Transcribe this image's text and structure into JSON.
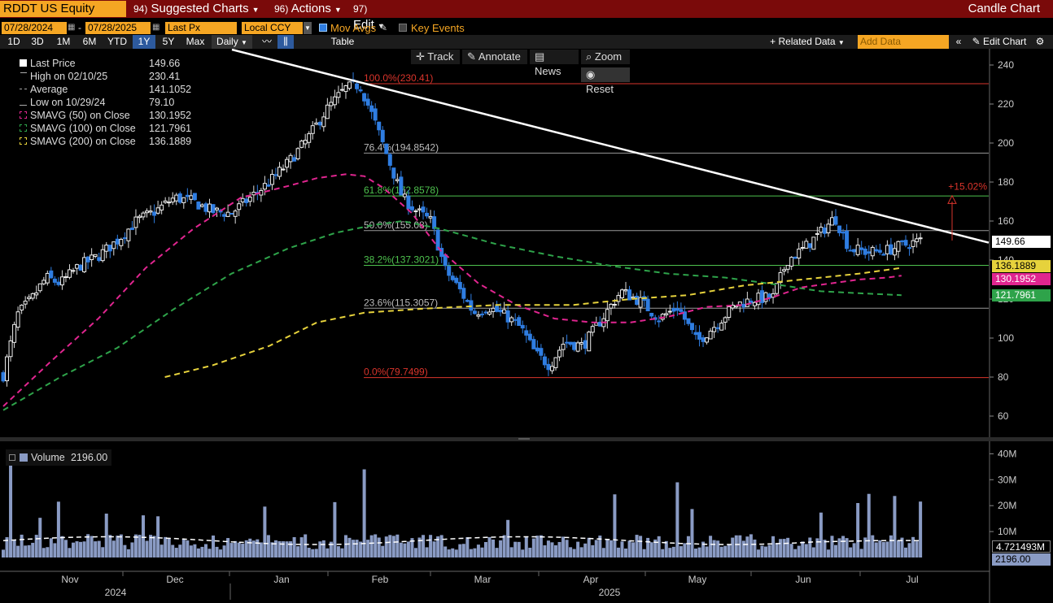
{
  "header": {
    "ticker": "RDDT US Equity",
    "menu_suggested": "Suggested Charts",
    "menu_suggested_num": "94)",
    "menu_actions": "Actions",
    "menu_actions_num": "96)",
    "menu_edit": "Edit",
    "menu_edit_num": "97)",
    "chart_title": "Candle Chart"
  },
  "controls": {
    "start_date": "07/28/2024",
    "end_date": "07/28/2025",
    "date_sep": "-",
    "price_field": "Last Px",
    "currency": "Local CCY",
    "mov_avgs": "Mov Avgs",
    "key_events": "Key Events",
    "periods": [
      "1D",
      "3D",
      "1M",
      "6M",
      "YTD",
      "1Y",
      "5Y",
      "Max"
    ],
    "active_period": "1Y",
    "frequency": "Daily",
    "table": "Table",
    "related_data": "+ Related Data",
    "add_data_placeholder": "Add Data",
    "edit_chart": "Edit Chart"
  },
  "tools": {
    "track": "Track",
    "annotate": "Annotate",
    "news": "News",
    "zoom": "Zoom",
    "reset": "Reset"
  },
  "legend": {
    "rows": [
      {
        "label": "Last Price",
        "value": "149.66"
      },
      {
        "label": "High on 02/10/25",
        "value": "230.41"
      },
      {
        "label": "Average",
        "value": "141.1052"
      },
      {
        "label": "Low on 10/29/24",
        "value": "79.10"
      },
      {
        "label": "SMAVG (50)   on Close",
        "value": "130.1952"
      },
      {
        "label": "SMAVG (100)  on Close",
        "value": "121.7961"
      },
      {
        "label": "SMAVG (200)  on Close",
        "value": "136.1889"
      }
    ],
    "volume_label": "Volume",
    "volume_value": "2196.00"
  },
  "tags": {
    "last": "149.66",
    "sma200": "136.1889",
    "sma50": "130.1952",
    "sma100": "121.7961",
    "vol_ma": "4.721493M",
    "vol": "2196.00"
  },
  "colors": {
    "menu_bar": "#7a0a0a",
    "accent": "#f5a623",
    "candle_up": "#ffffff",
    "candle_down": "#2f7de1",
    "sma50": "#e0258f",
    "sma100": "#2ea34a",
    "sma200": "#e6d23c",
    "fib_red": "#d9342b",
    "fib_green": "#4ec24e",
    "volume": "#8a9bc4"
  },
  "chart_data": {
    "type": "candlestick",
    "title": "RDDT US Equity",
    "ylim": [
      50,
      245
    ],
    "y_ticks": [
      60,
      80,
      100,
      120,
      140,
      160,
      180,
      200,
      220,
      240
    ],
    "x_month_labels": [
      "Nov",
      "Dec",
      "Jan",
      "Feb",
      "Mar",
      "Apr",
      "May",
      "Jun",
      "Jul"
    ],
    "x_year_labels": [
      "2024",
      "2025"
    ],
    "fibonacci": [
      {
        "label": "100.0%(230.41)",
        "value": 230.41,
        "color": "red"
      },
      {
        "label": "76.4%(194.8542)",
        "value": 194.8542,
        "color": "gray"
      },
      {
        "label": "61.8%(172.8578)",
        "value": 172.8578,
        "color": "green"
      },
      {
        "label": "50.0%(155.08)",
        "value": 155.08,
        "color": "gray"
      },
      {
        "label": "38.2%(137.3021)",
        "value": 137.3021,
        "color": "green"
      },
      {
        "label": "23.6%(115.3057)",
        "value": 115.3057,
        "color": "gray"
      },
      {
        "label": "0.0%(79.7499)",
        "value": 79.7499,
        "color": "red"
      }
    ],
    "annotation": {
      "label": "+15.02%"
    },
    "trendline": [
      [
        0,
        240
      ],
      [
        100,
        151
      ]
    ],
    "price_anchors": [
      [
        0,
        81
      ],
      [
        1.5,
        112
      ],
      [
        3,
        120
      ],
      [
        4.5,
        131
      ],
      [
        6,
        128
      ],
      [
        8,
        137
      ],
      [
        10,
        142
      ],
      [
        12,
        150
      ],
      [
        14,
        160
      ],
      [
        16,
        165
      ],
      [
        18,
        172
      ],
      [
        20,
        170
      ],
      [
        22,
        165
      ],
      [
        24,
        164
      ],
      [
        26,
        172
      ],
      [
        28,
        180
      ],
      [
        30,
        190
      ],
      [
        32,
        202
      ],
      [
        34,
        217
      ],
      [
        36,
        228
      ],
      [
        37.5,
        230
      ],
      [
        39,
        212
      ],
      [
        40.5,
        192
      ],
      [
        42,
        172
      ],
      [
        43.5,
        165
      ],
      [
        45,
        160
      ],
      [
        46.5,
        135
      ],
      [
        48,
        125
      ],
      [
        49.5,
        113
      ],
      [
        51,
        116
      ],
      [
        53,
        111
      ],
      [
        54.5,
        105
      ],
      [
        56,
        92
      ],
      [
        57.5,
        86
      ],
      [
        59,
        98
      ],
      [
        61,
        96
      ],
      [
        63,
        110
      ],
      [
        65,
        124
      ],
      [
        67,
        119
      ],
      [
        69,
        110
      ],
      [
        71,
        116
      ],
      [
        73,
        98
      ],
      [
        75,
        107
      ],
      [
        77,
        117
      ],
      [
        79,
        120
      ],
      [
        81,
        121
      ],
      [
        82.5,
        140
      ],
      [
        84,
        145
      ],
      [
        86,
        154
      ],
      [
        87.5,
        162
      ],
      [
        89,
        146
      ],
      [
        91,
        144
      ],
      [
        93,
        145
      ],
      [
        95,
        148
      ],
      [
        96.5,
        150
      ]
    ],
    "sma50": [
      [
        0,
        65
      ],
      [
        5,
        88
      ],
      [
        10,
        110
      ],
      [
        15,
        136
      ],
      [
        20,
        156
      ],
      [
        25,
        172
      ],
      [
        30,
        178
      ],
      [
        33,
        182
      ],
      [
        36,
        184
      ],
      [
        38,
        183
      ],
      [
        40,
        177
      ],
      [
        43,
        164
      ],
      [
        46,
        145
      ],
      [
        50,
        128
      ],
      [
        54,
        117
      ],
      [
        58,
        110
      ],
      [
        62,
        108
      ],
      [
        66,
        108
      ],
      [
        70,
        111
      ],
      [
        74,
        116
      ],
      [
        78,
        117
      ],
      [
        81,
        121
      ],
      [
        84,
        126
      ],
      [
        87,
        128
      ],
      [
        90,
        130
      ],
      [
        93,
        131
      ],
      [
        94.5,
        132
      ]
    ],
    "sma100": [
      [
        0,
        63
      ],
      [
        6,
        80
      ],
      [
        12,
        95
      ],
      [
        18,
        115
      ],
      [
        24,
        133
      ],
      [
        30,
        146
      ],
      [
        35,
        154
      ],
      [
        39,
        158
      ],
      [
        42,
        160
      ],
      [
        46,
        156
      ],
      [
        52,
        148
      ],
      [
        58,
        142
      ],
      [
        64,
        137
      ],
      [
        70,
        133
      ],
      [
        76,
        131
      ],
      [
        82,
        127
      ],
      [
        86,
        124
      ],
      [
        90,
        123
      ],
      [
        94.5,
        122
      ]
    ],
    "sma200": [
      [
        17,
        80
      ],
      [
        22,
        86
      ],
      [
        28,
        96
      ],
      [
        33,
        108
      ],
      [
        38,
        113
      ],
      [
        44,
        115
      ],
      [
        52,
        117
      ],
      [
        60,
        117
      ],
      [
        66,
        120
      ],
      [
        72,
        122
      ],
      [
        78,
        127
      ],
      [
        84,
        130
      ],
      [
        90,
        133
      ],
      [
        94.5,
        136
      ]
    ],
    "last_price": 149.66,
    "high": 230.41,
    "low": 79.1,
    "average": 141.1052,
    "volume_axis": {
      "ylim": [
        0,
        42000000
      ],
      "ticks": [
        "10M",
        "20M",
        "30M",
        "40M"
      ]
    },
    "volume_ma_last": "4.721493M"
  }
}
